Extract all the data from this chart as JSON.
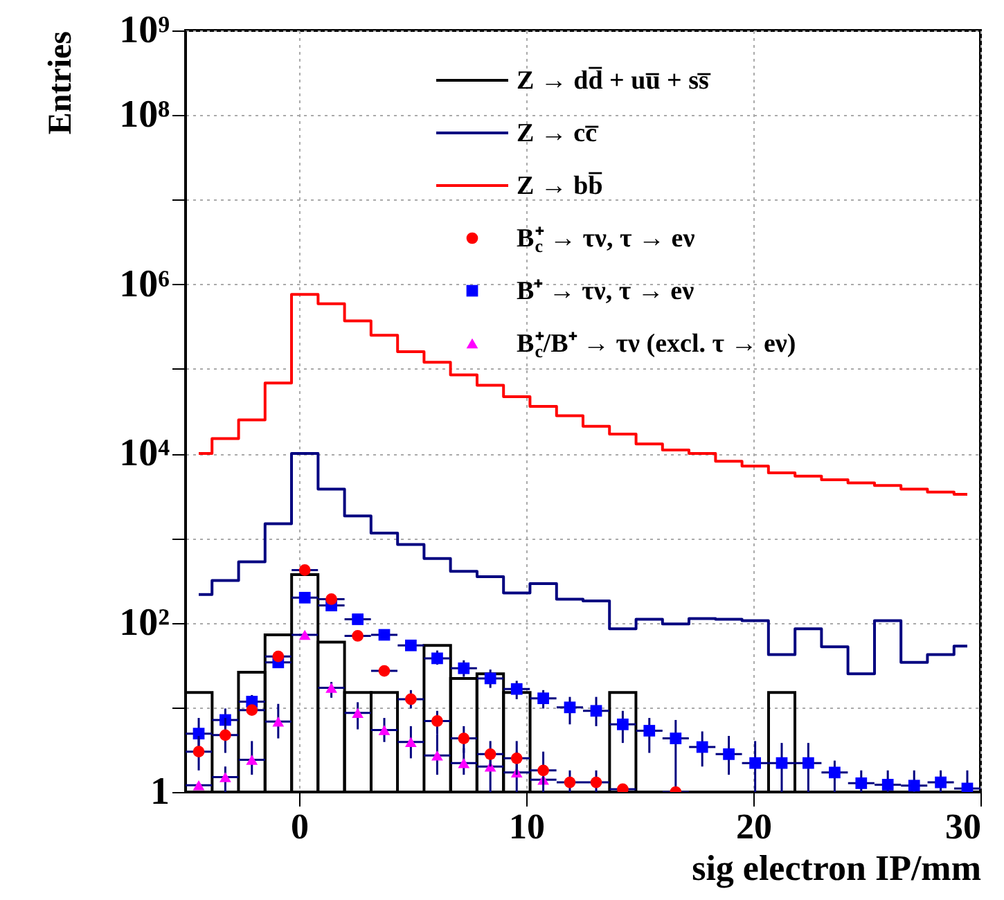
{
  "chart_data": {
    "type": "histogram",
    "xlabel": "sig electron IP/mm",
    "ylabel": "Entries",
    "bins": [
      -5,
      -3.83,
      -2.67,
      -1.5,
      -0.33,
      0.83,
      2,
      3.17,
      4.33,
      5.5,
      6.67,
      7.83,
      9,
      10.17,
      11.33,
      12.5,
      13.67,
      14.83,
      16,
      17.17,
      18.33,
      19.5,
      20.67,
      21.83,
      23,
      24.17,
      25.33,
      26.5,
      27.67,
      28.83,
      30
    ],
    "series": [
      {
        "name": "Z → dd̅ + uu̅ + ss̅",
        "color": "#000000",
        "values": [
          15,
          null,
          26,
          72,
          370,
          59,
          15,
          15,
          null,
          54,
          22,
          25,
          15,
          null,
          null,
          null,
          15,
          null,
          null,
          null,
          null,
          null,
          15,
          null,
          null,
          null,
          null,
          null,
          null,
          null
        ]
      },
      {
        "name": "Z → cc̅",
        "type": "step",
        "color": "#000080",
        "x": [
          -4.42,
          -3.25,
          -2.08,
          -0.92,
          0.25,
          1.42,
          2.58,
          3.75,
          4.92,
          6.08,
          7.25,
          8.42,
          9.58,
          10.75,
          11.92,
          13.08,
          14.25,
          15.42,
          16.58,
          17.75,
          18.92,
          20.08,
          21.25,
          22.42,
          23.58,
          24.75,
          25.92,
          27.08,
          28.25,
          29.42
        ],
        "values": [
          216,
          316,
          525,
          1480,
          10000,
          3800,
          1830,
          1150,
          840,
          575,
          405,
          350,
          225,
          290,
          190,
          181,
          85,
          110,
          97,
          112,
          110,
          106,
          42,
          85,
          52,
          25,
          106,
          34,
          42,
          53
        ]
      },
      {
        "name": "Z → bb̅",
        "type": "step",
        "color": "#ff0000",
        "x": [
          -4.42,
          -3.25,
          -2.08,
          -0.92,
          0.25,
          1.42,
          2.58,
          3.75,
          4.92,
          6.08,
          7.25,
          8.42,
          9.58,
          10.75,
          11.92,
          13.08,
          14.25,
          15.42,
          16.58,
          17.75,
          18.92,
          20.08,
          21.25,
          22.42,
          23.58,
          24.75,
          25.92,
          27.08,
          28.25,
          29.42
        ],
        "values": [
          10000,
          15000,
          25000,
          68000,
          760000,
          590000,
          370000,
          250000,
          160000,
          120000,
          85000,
          64000,
          47000,
          36000,
          28000,
          21000,
          17000,
          13000,
          11000,
          10000,
          8100,
          7100,
          5900,
          5400,
          4900,
          4500,
          4200,
          3800,
          3500,
          3300
        ]
      },
      {
        "name": "B$_{c}$⁺ → τν, τ → eν",
        "type": "scatter",
        "marker": "circle",
        "color": "#ff0000",
        "x": [
          -4.42,
          -3.25,
          -2.08,
          -0.92,
          0.25,
          1.42,
          2.58,
          3.75,
          4.92,
          6.08,
          7.25,
          8.42,
          9.58,
          10.75,
          11.92,
          13.08,
          14.25,
          15.42,
          16.58
        ],
        "values": [
          3.0,
          4.7,
          9.3,
          40,
          420,
          190,
          70,
          27,
          12.5,
          6.9,
          4.3,
          2.8,
          2.5,
          1.8,
          1.3,
          1.3,
          1.08,
          null,
          1.0
        ],
        "errors": [
          [
            1.8,
            4.6
          ],
          [
            2.9,
            7.5
          ],
          null,
          null,
          null,
          null,
          null,
          null,
          [
            9.7,
            16
          ],
          [
            4.8,
            9.1
          ],
          [
            2.9,
            6
          ],
          [
            2,
            4
          ],
          [
            1.6,
            4
          ],
          [
            1,
            3
          ],
          [
            1,
            1.8
          ],
          [
            1,
            1.8
          ],
          null,
          null,
          null
        ],
        "xerrors": [
          0.58,
          0.58,
          0.58,
          0.58,
          0.58,
          0.58,
          0.58,
          0.58,
          0.58,
          0.58,
          0.58,
          0.58,
          0.58,
          0.58,
          0.58,
          0.58,
          0.58,
          null,
          0.58
        ]
      },
      {
        "name": "B⁺ → τν, τ → eν",
        "type": "scatter",
        "marker": "square",
        "color": "#0000ff",
        "x": [
          -4.42,
          -3.25,
          -2.08,
          -0.92,
          0.25,
          1.42,
          2.58,
          3.75,
          4.92,
          6.08,
          7.25,
          8.42,
          9.58,
          10.75,
          11.92,
          13.08,
          14.25,
          15.42,
          16.58,
          17.75,
          18.92,
          20.08,
          21.25,
          22.42,
          23.58,
          24.75,
          25.92,
          27.08,
          28.25,
          29.42
        ],
        "values": [
          4.9,
          7.1,
          11.7,
          34,
          198,
          160,
          110,
          72,
          54,
          38,
          29,
          22,
          16.5,
          12.8,
          10,
          9.1,
          6.3,
          5.3,
          4.3,
          3.4,
          2.8,
          2.2,
          2.2,
          2.2,
          1.7,
          1.27,
          1.22,
          1.19,
          1.3,
          1.1
        ],
        "errors": [
          [
            2.9,
            7.5
          ],
          [
            4.3,
            9.7
          ],
          [
            9.1,
            14
          ],
          null,
          null,
          null,
          null,
          null,
          null,
          [
            32,
            47
          ],
          [
            23,
            36
          ],
          [
            17,
            28
          ],
          [
            12.5,
            20.6
          ],
          [
            9.7,
            16
          ],
          [
            6.3,
            13.3
          ],
          [
            6,
            13.3
          ],
          [
            3.8,
            9.1
          ],
          [
            2.9,
            7.5
          ],
          [
            1,
            7.1
          ],
          [
            2,
            5.2
          ],
          [
            1.6,
            4.6
          ],
          [
            1,
            4
          ],
          [
            1,
            3.8
          ],
          [
            1,
            3.8
          ],
          [
            1,
            2.35
          ],
          [
            1,
            1.8
          ],
          [
            1,
            1.8
          ],
          [
            1,
            1.8
          ],
          [
            1,
            1.8
          ],
          [
            1,
            1.8
          ]
        ],
        "xerrors": [
          0.58,
          0.58,
          0.58,
          0.58,
          0.58,
          0.58,
          0.58,
          0.58,
          0.58,
          0.58,
          0.58,
          0.58,
          0.58,
          0.58,
          0.58,
          0.58,
          0.58,
          0.58,
          0.58,
          0.58,
          0.58,
          0.58,
          0.58,
          0.58,
          0.58,
          0.58,
          0.58,
          0.58,
          0.58,
          0.58
        ]
      },
      {
        "name": "B$_{c}$⁺/B⁺ → τν (excl. τ → eν)",
        "type": "scatter",
        "marker": "triangle",
        "color": "#ff00ff",
        "x": [
          -4.42,
          -3.25,
          -2.08,
          -0.92,
          0.25,
          1.42,
          2.58,
          3.75,
          4.92,
          6.08,
          7.25,
          8.42,
          9.58,
          10.75
        ],
        "values": [
          1.2,
          1.5,
          2.4,
          6.8,
          72,
          17,
          8.6,
          5.4,
          3.9,
          2.7,
          2.2,
          2.0,
          1.7,
          1.4
        ],
        "errors": [
          null,
          [
            1,
            2
          ],
          [
            1.6,
            4
          ],
          [
            4.3,
            11
          ],
          null,
          [
            13,
            20
          ],
          [
            5.5,
            11.5
          ],
          [
            3.9,
            7.5
          ],
          [
            2.5,
            6
          ],
          [
            1.6,
            4.8
          ],
          [
            1.6,
            3.3
          ],
          [
            1,
            3
          ],
          [
            1,
            3
          ],
          null
        ],
        "xerrors": [
          0.58,
          0.58,
          0.58,
          0.58,
          0.58,
          0.58,
          0.58,
          0.58,
          0.58,
          0.58,
          0.58,
          0.58,
          0.58,
          0.58
        ]
      }
    ],
    "xlim": [
      -5,
      30
    ],
    "xticks": [
      0,
      10,
      20,
      30
    ],
    "ylim": [
      1,
      1000000000
    ],
    "yticks": [
      1,
      {
        "value": 10,
        "label": null
      },
      {
        "value": 100,
        "label": "10²"
      },
      {
        "value": 1000,
        "label": null
      },
      {
        "value": 10000,
        "label": "10⁴"
      },
      {
        "value": 100000,
        "label": null
      },
      {
        "value": 1000000,
        "label": "10⁶"
      },
      {
        "value": 10000000,
        "label": null
      },
      {
        "value": 100000000,
        "label": "10⁸"
      },
      {
        "value": 1000000000,
        "label": "10⁹"
      }
    ],
    "log": true,
    "grid": true,
    "legend": "top right"
  }
}
